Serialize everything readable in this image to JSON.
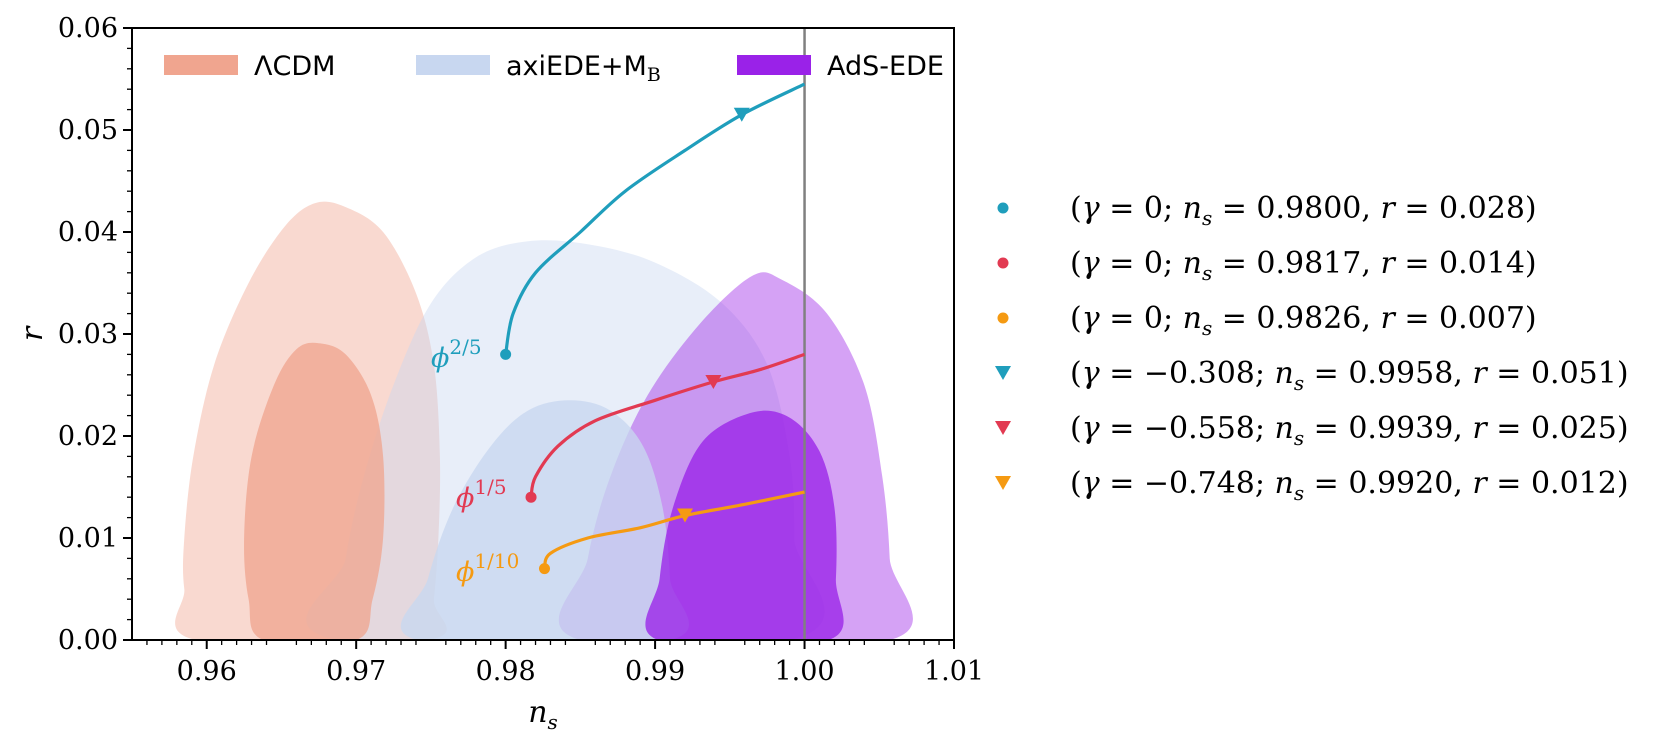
{
  "chart_data": {
    "type": "area",
    "xlabel": "n_s",
    "ylabel": "r",
    "xlim": [
      0.955,
      1.01
    ],
    "ylim": [
      0.0,
      0.06
    ],
    "x_ticks": [
      "0.96",
      "0.97",
      "0.98",
      "0.99",
      "1.00",
      "1.01"
    ],
    "y_ticks": [
      "0.00",
      "0.01",
      "0.02",
      "0.03",
      "0.04",
      "0.05",
      "0.06"
    ],
    "x_tick_values": [
      0.96,
      0.97,
      0.98,
      0.99,
      1.0,
      1.01
    ],
    "y_tick_values": [
      0.0,
      0.01,
      0.02,
      0.03,
      0.04,
      0.05,
      0.06
    ],
    "vertical_line": {
      "x": 1.0,
      "color": "#808080"
    },
    "legend_position": "top",
    "legend": [
      {
        "label": "ΛCDM",
        "color": "#f0a58f"
      },
      {
        "label": "axiEDE+M",
        "subscript": "B",
        "color": "#c8d7f0"
      },
      {
        "label": "AdS-EDE",
        "color": "#9a22e8"
      }
    ],
    "contours": [
      {
        "name": "ΛCDM",
        "color": "#f0a58f",
        "outer": [
          [
            0.9593,
            0
          ],
          [
            0.9585,
            0.005
          ],
          [
            0.9585,
            0.01
          ],
          [
            0.9591,
            0.018
          ],
          [
            0.9605,
            0.027
          ],
          [
            0.9628,
            0.035
          ],
          [
            0.9652,
            0.0405
          ],
          [
            0.9672,
            0.0428
          ],
          [
            0.9692,
            0.0425
          ],
          [
            0.9718,
            0.04
          ],
          [
            0.974,
            0.034
          ],
          [
            0.9752,
            0.027
          ],
          [
            0.9756,
            0.018
          ],
          [
            0.9755,
            0.01
          ],
          [
            0.9752,
            0.004
          ],
          [
            0.9748,
            0
          ]
        ],
        "inner": [
          [
            0.9638,
            0
          ],
          [
            0.9628,
            0.004
          ],
          [
            0.9625,
            0.01
          ],
          [
            0.963,
            0.018
          ],
          [
            0.9645,
            0.025
          ],
          [
            0.966,
            0.0285
          ],
          [
            0.9675,
            0.0291
          ],
          [
            0.9693,
            0.028
          ],
          [
            0.971,
            0.024
          ],
          [
            0.9718,
            0.018
          ],
          [
            0.9718,
            0.01
          ],
          [
            0.9711,
            0.004
          ],
          [
            0.97,
            0
          ]
        ]
      },
      {
        "name": "axiEDE+M_B",
        "color": "#c8d7f0",
        "outer": [
          [
            0.9688,
            0
          ],
          [
            0.9693,
            0.008
          ],
          [
            0.9705,
            0.016
          ],
          [
            0.9725,
            0.025
          ],
          [
            0.975,
            0.033
          ],
          [
            0.978,
            0.0375
          ],
          [
            0.9815,
            0.0391
          ],
          [
            0.9855,
            0.0388
          ],
          [
            0.99,
            0.037
          ],
          [
            0.9945,
            0.033
          ],
          [
            0.9975,
            0.027
          ],
          [
            0.999,
            0.018
          ],
          [
            0.9993,
            0.01
          ],
          [
            0.999,
            0
          ]
        ],
        "inner": [
          [
            0.9741,
            0
          ],
          [
            0.9748,
            0.006
          ],
          [
            0.9765,
            0.013
          ],
          [
            0.979,
            0.019
          ],
          [
            0.9815,
            0.0225
          ],
          [
            0.9843,
            0.0235
          ],
          [
            0.987,
            0.0225
          ],
          [
            0.9892,
            0.019
          ],
          [
            0.9905,
            0.013
          ],
          [
            0.991,
            0.006
          ],
          [
            0.991,
            0
          ]
        ]
      },
      {
        "name": "AdS-EDE",
        "color": "#9a22e8",
        "outer": [
          [
            0.985,
            0
          ],
          [
            0.9855,
            0.008
          ],
          [
            0.987,
            0.016
          ],
          [
            0.9895,
            0.024
          ],
          [
            0.993,
            0.031
          ],
          [
            0.9965,
            0.0357
          ],
          [
            0.9985,
            0.0353
          ],
          [
            1.0015,
            0.032
          ],
          [
            1.004,
            0.025
          ],
          [
            1.0052,
            0.016
          ],
          [
            1.0057,
            0.008
          ],
          [
            1.0057,
            0
          ]
        ],
        "inner": [
          [
            0.9902,
            0
          ],
          [
            0.9903,
            0.006
          ],
          [
            0.9912,
            0.013
          ],
          [
            0.9932,
            0.0195
          ],
          [
            0.9965,
            0.0223
          ],
          [
            0.999,
            0.0218
          ],
          [
            1.001,
            0.0185
          ],
          [
            1.002,
            0.013
          ],
          [
            1.0021,
            0.006
          ],
          [
            1.0016,
            0
          ]
        ]
      }
    ],
    "curves": [
      {
        "name": "ϕ^{2/5}",
        "label_base": "ϕ",
        "label_exp": "2/5",
        "color": "#1f9ebc",
        "points": [
          [
            0.98,
            0.028
          ],
          [
            0.9805,
            0.032
          ],
          [
            0.982,
            0.036
          ],
          [
            0.985,
            0.04
          ],
          [
            0.988,
            0.044
          ],
          [
            0.992,
            0.048
          ],
          [
            0.9958,
            0.0515
          ],
          [
            1.0,
            0.0545
          ]
        ],
        "start": [
          0.98,
          0.028
        ],
        "marker": [
          0.9958,
          0.0515
        ]
      },
      {
        "name": "ϕ^{1/5}",
        "label_base": "ϕ",
        "label_exp": "1/5",
        "color": "#e23a52",
        "points": [
          [
            0.9817,
            0.014
          ],
          [
            0.982,
            0.016
          ],
          [
            0.9835,
            0.019
          ],
          [
            0.986,
            0.0215
          ],
          [
            0.99,
            0.0235
          ],
          [
            0.9939,
            0.0253
          ],
          [
            0.997,
            0.0265
          ],
          [
            1.0,
            0.028
          ]
        ],
        "start": [
          0.9817,
          0.014
        ],
        "marker": [
          0.9939,
          0.0253
        ]
      },
      {
        "name": "ϕ^{1/10}",
        "label_base": "ϕ",
        "label_exp": "1/10",
        "color": "#f59a12",
        "points": [
          [
            0.9826,
            0.007
          ],
          [
            0.983,
            0.0085
          ],
          [
            0.9855,
            0.01
          ],
          [
            0.989,
            0.011
          ],
          [
            0.992,
            0.0122
          ],
          [
            0.996,
            0.0133
          ],
          [
            1.0,
            0.0145
          ]
        ],
        "start": [
          0.9826,
          0.007
        ],
        "marker": [
          0.992,
          0.0122
        ]
      }
    ]
  },
  "side_legend": [
    {
      "marker": "circle",
      "color": "#1f9ebc",
      "text": "(γ = 0; n_s = 0.9800, r = 0.028)",
      "gamma": "0",
      "ns": "0.9800",
      "r": "0.028"
    },
    {
      "marker": "circle",
      "color": "#e23a52",
      "text": "(γ = 0; n_s = 0.9817, r = 0.014)",
      "gamma": "0",
      "ns": "0.9817",
      "r": "0.014"
    },
    {
      "marker": "circle",
      "color": "#f59a12",
      "text": "(γ = 0; n_s = 0.9826, r = 0.007)",
      "gamma": "0",
      "ns": "0.9826",
      "r": "0.007"
    },
    {
      "marker": "triangle",
      "color": "#1f9ebc",
      "text": "(γ = −0.308; n_s = 0.9958, r = 0.051)",
      "gamma": "−0.308",
      "ns": "0.9958",
      "r": "0.051"
    },
    {
      "marker": "triangle",
      "color": "#e23a52",
      "text": "(γ = −0.558; n_s = 0.9939, r = 0.025)",
      "gamma": "−0.558",
      "ns": "0.9939",
      "r": "0.025"
    },
    {
      "marker": "triangle",
      "color": "#f59a12",
      "text": "(γ = −0.748; n_s = 0.9920, r = 0.012)",
      "gamma": "−0.748",
      "ns": "0.9920",
      "r": "0.012"
    }
  ]
}
